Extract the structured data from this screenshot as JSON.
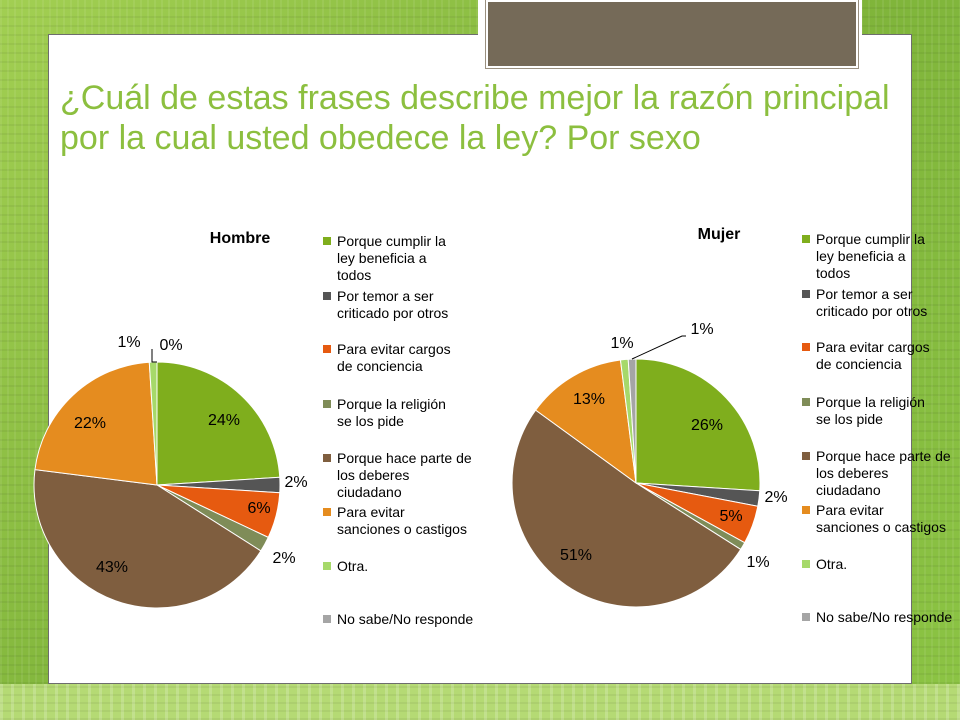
{
  "slide": {
    "title": "¿Cuál de estas frases describe mejor la razón principal por la cual usted obedece la ley?  Por sexo"
  },
  "chart_data": [
    {
      "type": "pie",
      "title": "Hombre",
      "categories": [
        "Porque cumplir la ley beneficia a todos",
        "Por temor a ser criticado por otros",
        "Para evitar cargos de conciencia",
        "Porque la religión se los pide",
        "Porque hace parte de los deberes ciudadano",
        "Para evitar sanciones o castigos",
        "Otra.",
        "No sabe/No responde"
      ],
      "values": [
        24,
        2,
        6,
        2,
        43,
        22,
        1,
        0
      ],
      "labels": [
        "24%",
        "2%",
        "6%",
        "2%",
        "43%",
        "22%",
        "1%",
        "0%"
      ],
      "colors": [
        "#7fae1d",
        "#555555",
        "#e65a10",
        "#7f8c58",
        "#7f5e3f",
        "#e58c1f",
        "#a6d96a",
        "#a5a5a5"
      ],
      "legend": "right"
    },
    {
      "type": "pie",
      "title": "Mujer",
      "categories": [
        "Porque cumplir la ley beneficia a todos",
        "Por temor a ser criticado por otros",
        "Para evitar cargos de conciencia",
        "Porque la religión se los pide",
        "Porque hace parte de los deberes ciudadano",
        "Para evitar sanciones o castigos",
        "Otra.",
        "No sabe/No responde"
      ],
      "values": [
        26,
        2,
        5,
        1,
        51,
        13,
        1,
        1
      ],
      "labels": [
        "26%",
        "2%",
        "5%",
        "1%",
        "51%",
        "13%",
        "1%",
        "1%"
      ],
      "colors": [
        "#7fae1d",
        "#555555",
        "#e65a10",
        "#7f8c58",
        "#7f5e3f",
        "#e58c1f",
        "#a6d96a",
        "#a5a5a5"
      ],
      "legend": "right"
    }
  ]
}
